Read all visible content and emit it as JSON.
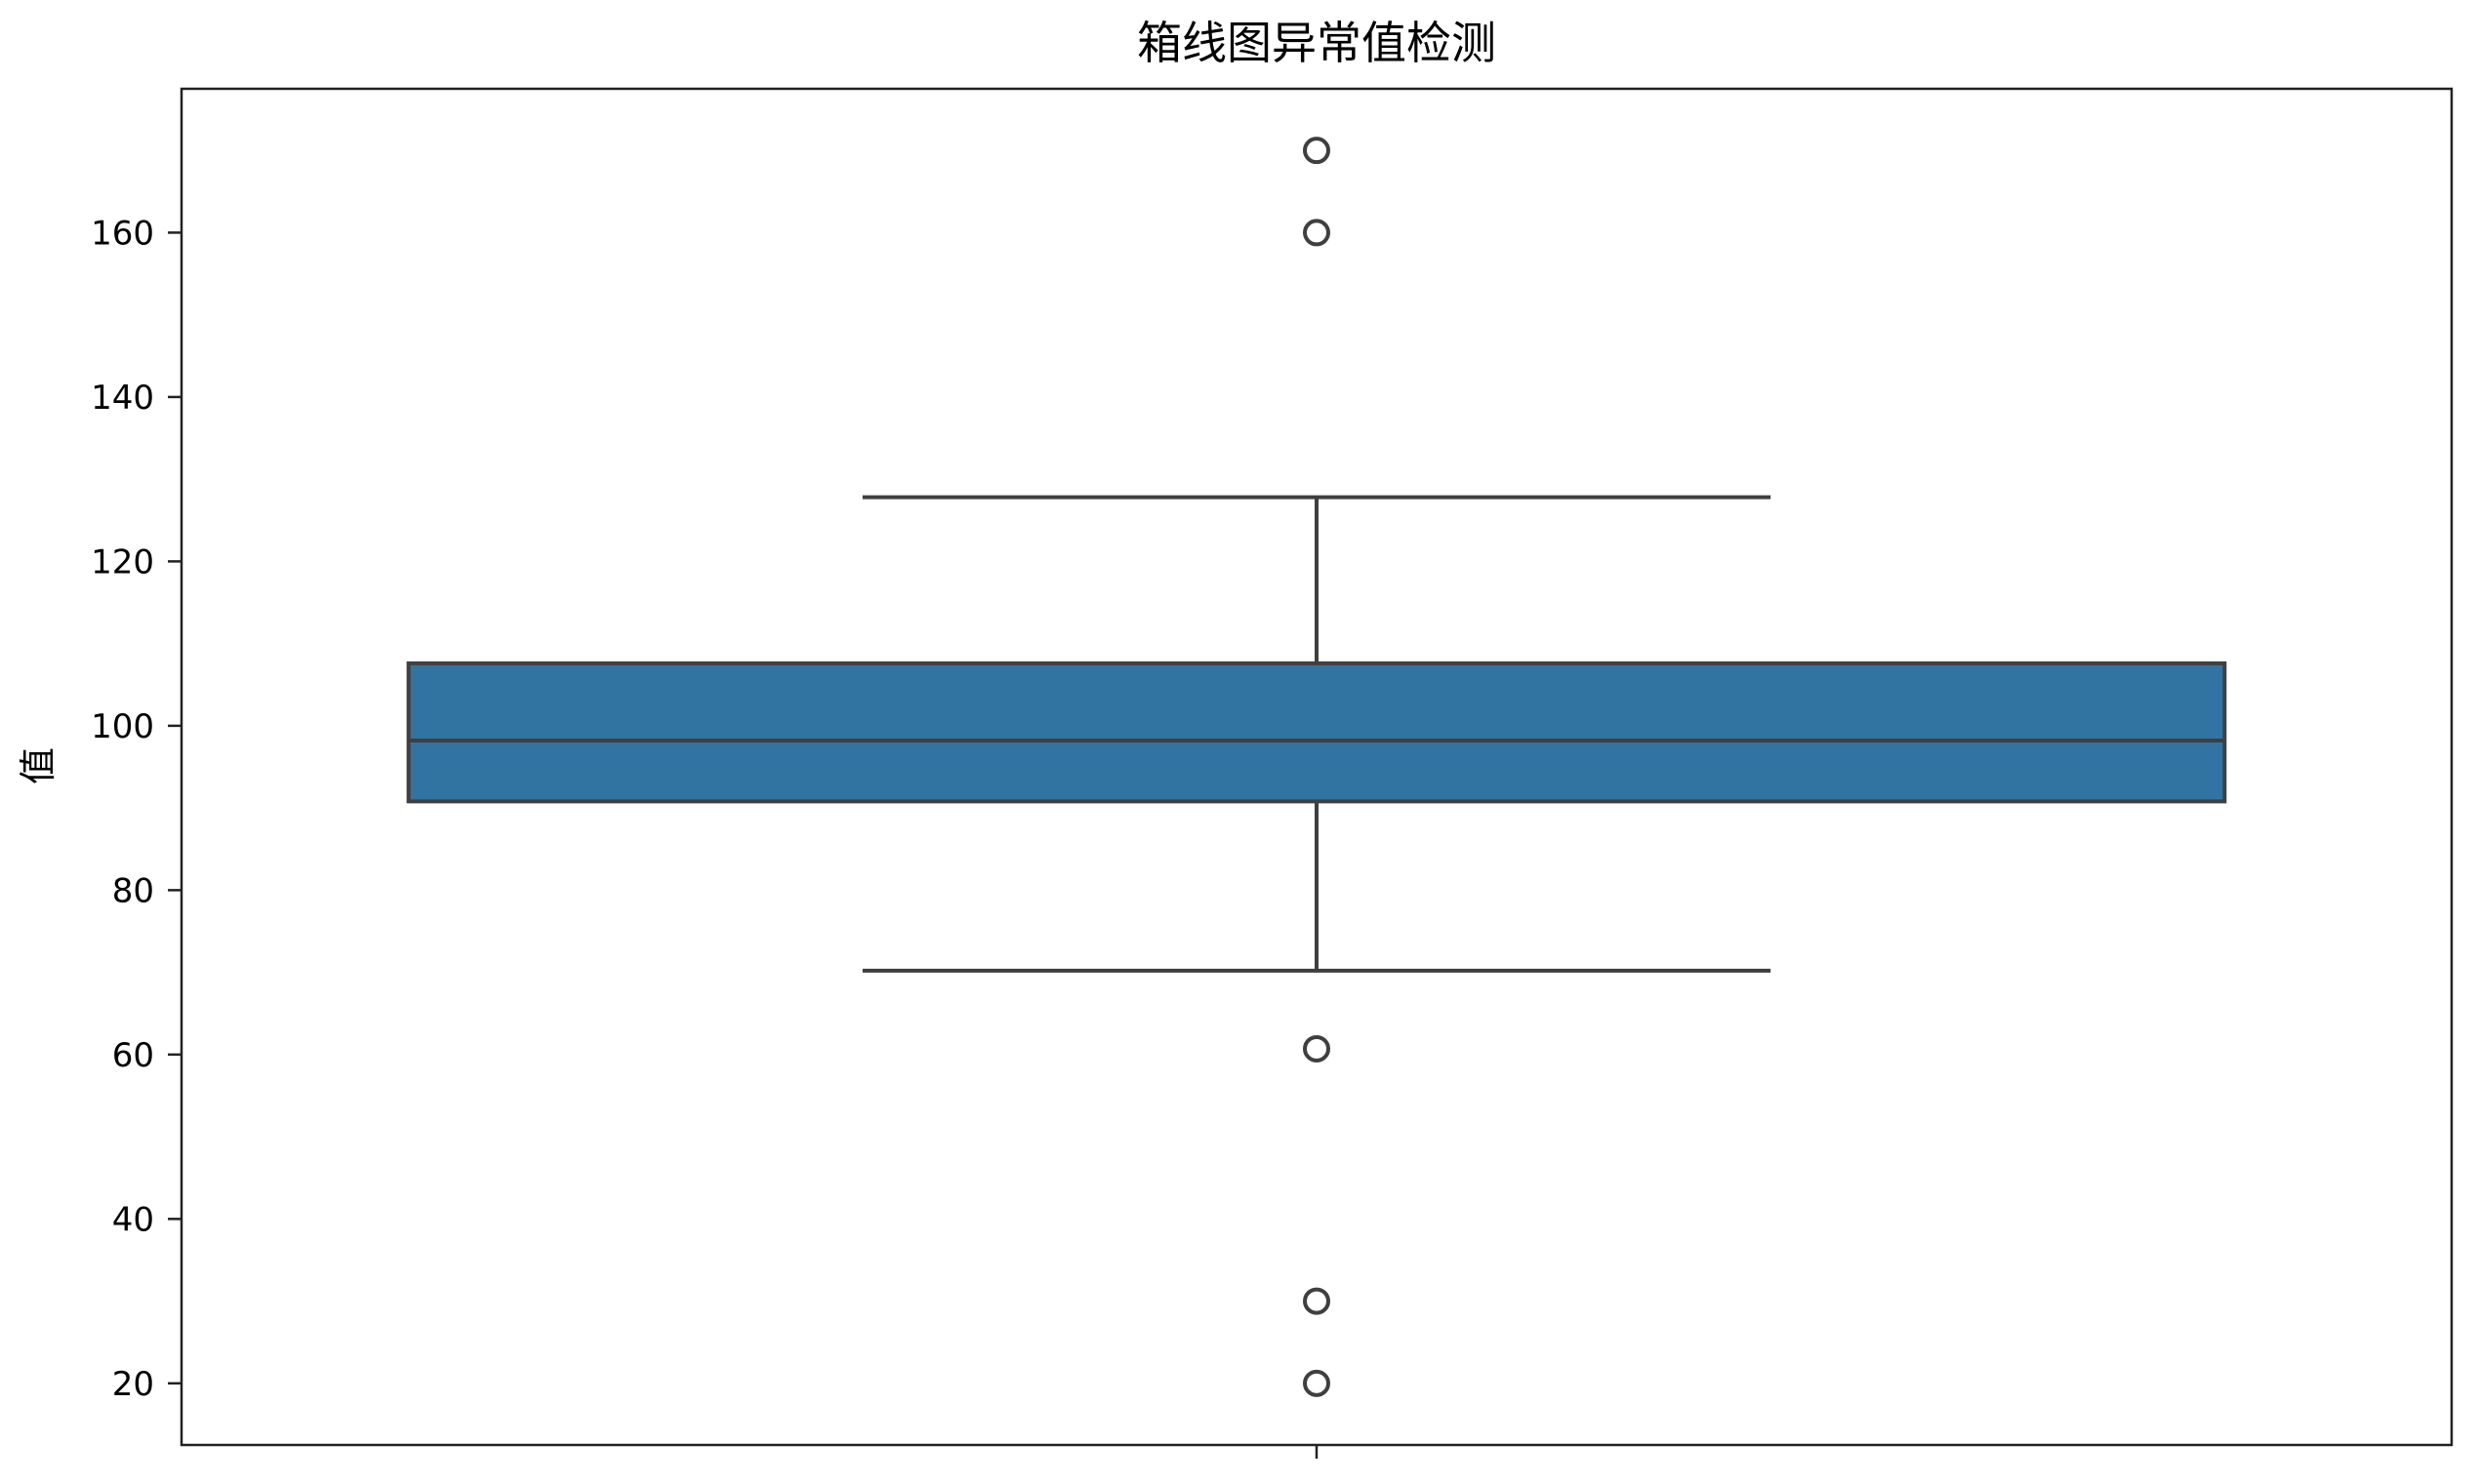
{
  "chart_data": {
    "type": "box",
    "title": "箱线图异常值检测",
    "xlabel": "",
    "ylabel": "值",
    "ylim": [
      12.5,
      177.5
    ],
    "yticks": [
      20,
      40,
      60,
      80,
      100,
      120,
      140,
      160
    ],
    "grid": false,
    "box": {
      "q1": 90.8,
      "median": 98.2,
      "q3": 107.6,
      "whisker_low": 70.2,
      "whisker_high": 127.8,
      "color": "#3274a1",
      "edge_color": "#3f3f3f"
    },
    "outliers": [
      170,
      160,
      60.7,
      30,
      20
    ]
  }
}
